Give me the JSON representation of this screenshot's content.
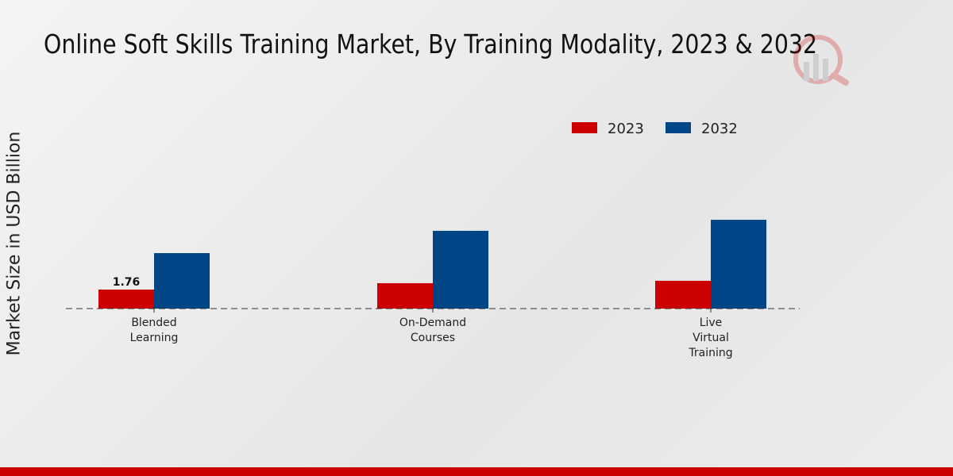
{
  "chart_data": {
    "type": "bar",
    "title": "Online Soft Skills Training Market, By Training Modality, 2023 & 2032",
    "xlabel": "",
    "ylabel": "Market Size in USD Billion",
    "categories": [
      [
        "Blended",
        "Learning"
      ],
      [
        "On-Demand",
        "Courses"
      ],
      [
        "Live",
        "Virtual",
        "Training"
      ]
    ],
    "series": [
      {
        "name": "2023",
        "color": "#cc0000",
        "values": [
          1.76,
          2.35,
          2.57
        ]
      },
      {
        "name": "2032",
        "color": "#004586",
        "values": [
          5.13,
          7.19,
          8.21
        ]
      }
    ],
    "data_labels": [
      {
        "series": 0,
        "index": 0,
        "text": "1.76"
      }
    ],
    "ylim": [
      0,
      28
    ],
    "grid": false,
    "legend": "top-right"
  }
}
